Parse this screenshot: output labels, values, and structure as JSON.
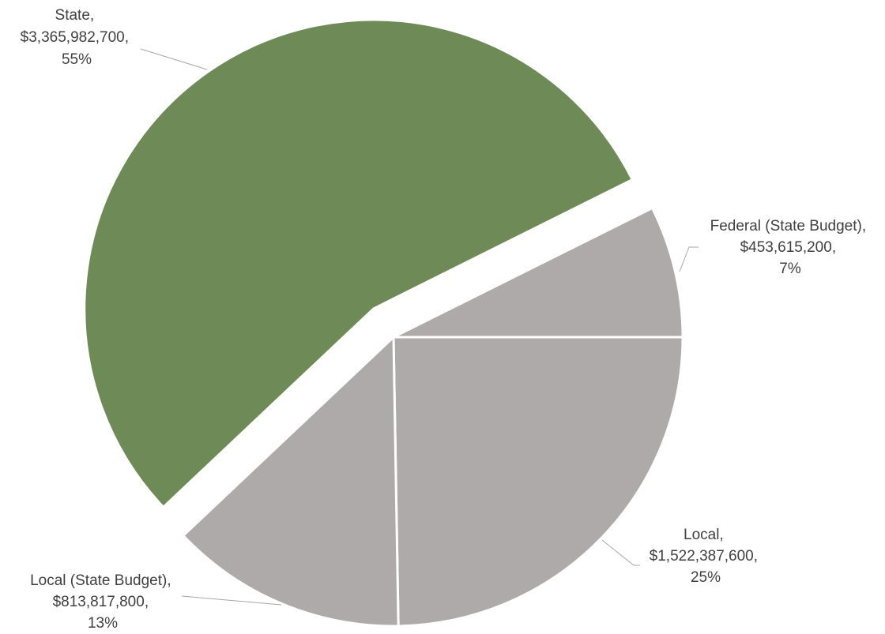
{
  "chart_data": {
    "type": "pie",
    "title": "",
    "slices": [
      {
        "label": "Federal (State Budget)",
        "value": 453615200,
        "value_text": "$453,615,200",
        "percent": "7%",
        "color": "#aeaaaa",
        "exploded": false
      },
      {
        "label": "Local",
        "value": 1522387600,
        "value_text": "$1,522,387,600",
        "percent": "25%",
        "color": "#aeaaaa",
        "exploded": false
      },
      {
        "label": "Local (State Budget)",
        "value": 813817800,
        "value_text": "$813,817,800",
        "percent": "13%",
        "color": "#aeaaaa",
        "exploded": false
      },
      {
        "label": "State",
        "value": 3365982700,
        "value_text": "$3,365,982,700",
        "percent": "55%",
        "color": "#6e8b57",
        "exploded": true
      }
    ],
    "legend": "none",
    "data_labels": "outside with leader lines"
  }
}
